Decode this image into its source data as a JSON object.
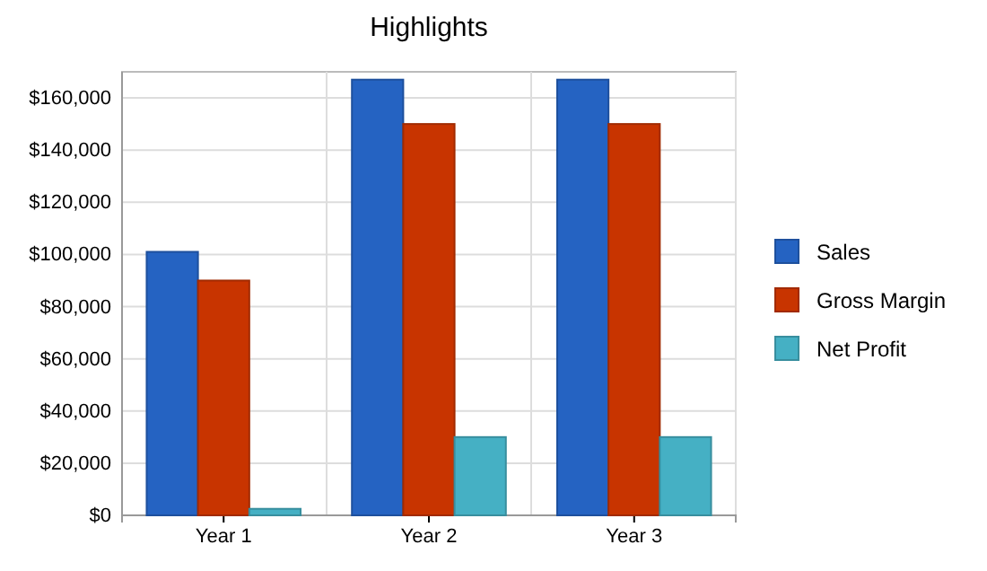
{
  "chart_data": {
    "type": "bar",
    "title": "Highlights",
    "categories": [
      "Year 1",
      "Year 2",
      "Year 3"
    ],
    "series": [
      {
        "name": "Sales",
        "color": "#2563c2",
        "values": [
          101000,
          167000,
          167000
        ]
      },
      {
        "name": "Gross Margin",
        "color": "#c83400",
        "values": [
          90000,
          150000,
          150000
        ]
      },
      {
        "name": "Net Profit",
        "color": "#45b0c4",
        "values": [
          2500,
          30000,
          30000
        ]
      }
    ],
    "ylim": [
      0,
      170000
    ],
    "yticks": [
      {
        "value": 0,
        "label": "$0"
      },
      {
        "value": 20000,
        "label": "$20,000"
      },
      {
        "value": 40000,
        "label": "$40,000"
      },
      {
        "value": 60000,
        "label": "$60,000"
      },
      {
        "value": 80000,
        "label": "$80,000"
      },
      {
        "value": 100000,
        "label": "$100,000"
      },
      {
        "value": 120000,
        "label": "$120,000"
      },
      {
        "value": 140000,
        "label": "$140,000"
      },
      {
        "value": 160000,
        "label": "$160,000"
      }
    ],
    "grid": true,
    "legend": "right"
  }
}
